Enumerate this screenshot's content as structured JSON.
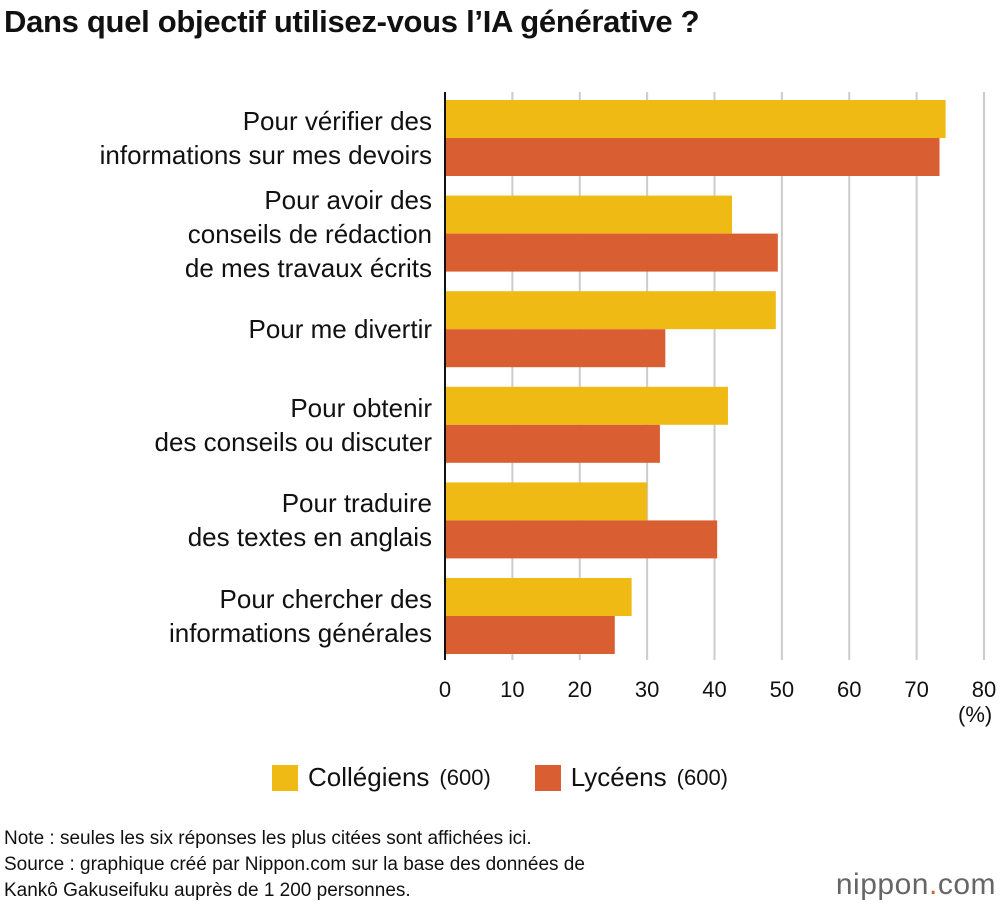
{
  "title": "Dans quel objectif utilisez-vous l’IA générative ?",
  "chart_data": {
    "type": "bar",
    "orientation": "horizontal",
    "categories": [
      "Pour vérifier des\ninformations sur mes devoirs",
      "Pour avoir des\nconseils de rédaction\nde mes travaux écrits",
      "Pour me divertir",
      "Pour obtenir\ndes conseils ou discuter",
      "Pour traduire\ndes textes en anglais",
      "Pour chercher des\ninformations générales"
    ],
    "series": [
      {
        "name": "Collégiens",
        "count": "(600)",
        "color": "#f0ba14",
        "values": [
          74.3,
          42.6,
          49.1,
          42.0,
          30.0,
          27.7
        ]
      },
      {
        "name": "Lycéens",
        "count": "(600)",
        "color": "#d95f32",
        "values": [
          73.4,
          49.4,
          32.7,
          31.9,
          40.4,
          25.2
        ]
      }
    ],
    "xlim": [
      0,
      80
    ],
    "xticks": [
      "0",
      "10",
      "20",
      "30",
      "40",
      "50",
      "60",
      "70",
      "80"
    ],
    "xunit": "(%)",
    "grid": true,
    "legend": "bottom"
  },
  "notes": [
    "Note : seules les six réponses les plus citées sont affichées ici.",
    "Source : graphique créé par Nippon.com sur la base des données de",
    "Kankô Gakuseifuku auprès de 1 200 personnes."
  ],
  "logo": {
    "text": "nippon",
    "dot": ".",
    "suffix": "com"
  }
}
